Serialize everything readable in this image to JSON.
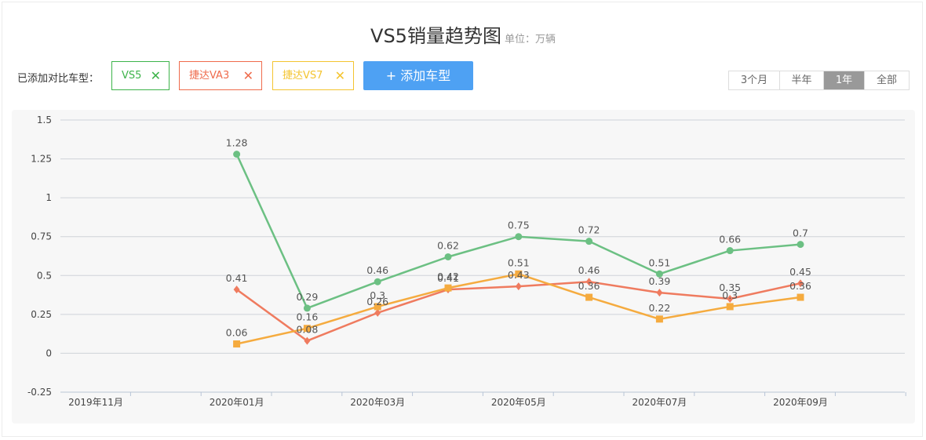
{
  "header": {
    "title": "VS5销量趋势图",
    "unit": "单位：万辆"
  },
  "compare": {
    "label": "已添加对比车型：",
    "tags": [
      {
        "label": "VS5",
        "color": "#3db34a"
      },
      {
        "label": "捷达VA3",
        "color": "#ef6b4c"
      },
      {
        "label": "捷达VS7",
        "color": "#f4c42f"
      }
    ],
    "add_label": "+ 添加车型"
  },
  "range": {
    "options": [
      "3个月",
      "半年",
      "1年",
      "全部"
    ],
    "selected": "1年"
  },
  "chart_data": {
    "type": "line",
    "categories": [
      "2019年11月",
      "2019年12月",
      "2020年01月",
      "2020年02月",
      "2020年03月",
      "2020年04月",
      "2020年05月",
      "2020年06月",
      "2020年07月",
      "2020年08月",
      "2020年09月"
    ],
    "x_tick_labels": [
      "2019年11月",
      "2020年01月",
      "2020年03月",
      "2020年05月",
      "2020年07月",
      "2020年09月"
    ],
    "y_ticks": [
      "1.5",
      "1.25",
      "1",
      "0.75",
      "0.5",
      "0.25",
      "0",
      "-0.25"
    ],
    "ylim": [
      -0.25,
      1.5
    ],
    "grid": true,
    "series": [
      {
        "name": "VS5",
        "color": "#6cc083",
        "marker": "circle",
        "values": [
          null,
          null,
          1.28,
          0.29,
          0.46,
          0.62,
          0.75,
          0.72,
          0.51,
          0.66,
          0.7
        ]
      },
      {
        "name": "捷达VA3",
        "color": "#ef7b5f",
        "marker": "diamond",
        "values": [
          null,
          null,
          0.41,
          0.08,
          0.26,
          0.41,
          0.43,
          0.46,
          0.39,
          0.35,
          0.45
        ]
      },
      {
        "name": "捷达VS7",
        "color": "#f5ab3f",
        "marker": "square",
        "values": [
          null,
          null,
          0.06,
          0.16,
          0.3,
          0.42,
          0.51,
          0.36,
          0.22,
          0.3,
          0.36
        ]
      }
    ]
  }
}
